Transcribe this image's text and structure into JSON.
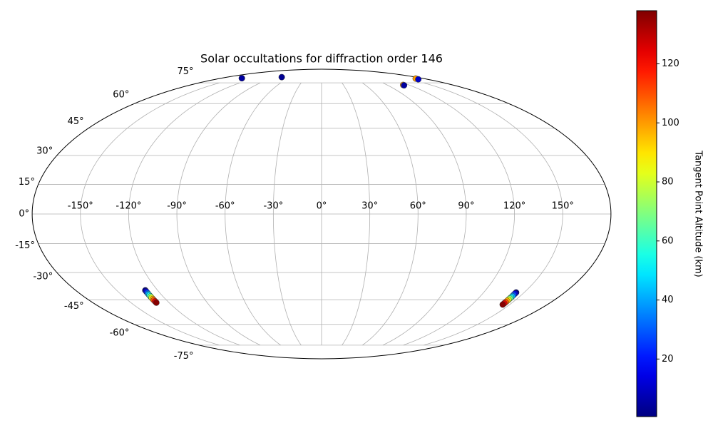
{
  "chart_data": {
    "type": "scatter",
    "projection": "mollweide",
    "title": "Solar occultations for diffraction order 146",
    "colorbar_label": "Tangent Point Altitude (km)",
    "colormap": "jet",
    "grid": true,
    "x": [
      -143,
      -143,
      -76,
      166,
      164,
      112,
      112,
      -129.0,
      -129.1,
      -129.2,
      -129.3,
      -129.4,
      -129.5,
      -129.6,
      -129.7,
      -129.8,
      -129.9,
      -130.0,
      144.0,
      144.04,
      144.08,
      144.12,
      144.16,
      144.2,
      144.24,
      144.28,
      144.32,
      144.36,
      144.4
    ],
    "y": [
      79,
      79,
      80,
      78.7,
      78,
      73.3,
      73,
      -39.7,
      -40.4,
      -41.1,
      -41.8,
      -42.5,
      -43.2,
      -43.9,
      -44.6,
      -45.3,
      -46.0,
      -46.7,
      -40.9,
      -41.6,
      -42.3,
      -43.0,
      -43.7,
      -44.3,
      -45.0,
      -45.7,
      -46.4,
      -47.1,
      -47.8
    ],
    "c": [
      100,
      5,
      3,
      100,
      10,
      100,
      5,
      1,
      14,
      28,
      41,
      55,
      69,
      83,
      97,
      110,
      124,
      137,
      1,
      14,
      28,
      41,
      55,
      69,
      83,
      97,
      110,
      124,
      137
    ],
    "clim": [
      0.5,
      138
    ],
    "cticks": [
      20,
      40,
      60,
      80,
      100,
      120
    ],
    "xticks": [
      {
        "value": -150,
        "label": "-150°"
      },
      {
        "value": -120,
        "label": "-120°"
      },
      {
        "value": -90,
        "label": "-90°"
      },
      {
        "value": -60,
        "label": "-60°"
      },
      {
        "value": -30,
        "label": "-30°"
      },
      {
        "value": 0,
        "label": "0°"
      },
      {
        "value": 30,
        "label": "30°"
      },
      {
        "value": 60,
        "label": "60°"
      },
      {
        "value": 90,
        "label": "90°"
      },
      {
        "value": 120,
        "label": "120°"
      },
      {
        "value": 150,
        "label": "150°"
      }
    ],
    "yticks": [
      {
        "value": -75,
        "label": "-75°"
      },
      {
        "value": -60,
        "label": "-60°"
      },
      {
        "value": -45,
        "label": "-45°"
      },
      {
        "value": -30,
        "label": "-30°"
      },
      {
        "value": -15,
        "label": "-15°"
      },
      {
        "value": 0,
        "label": "0°"
      },
      {
        "value": 15,
        "label": "15°"
      },
      {
        "value": 30,
        "label": "30°"
      },
      {
        "value": 45,
        "label": "45°"
      },
      {
        "value": 60,
        "label": "60°"
      },
      {
        "value": 75,
        "label": "75°"
      }
    ]
  }
}
